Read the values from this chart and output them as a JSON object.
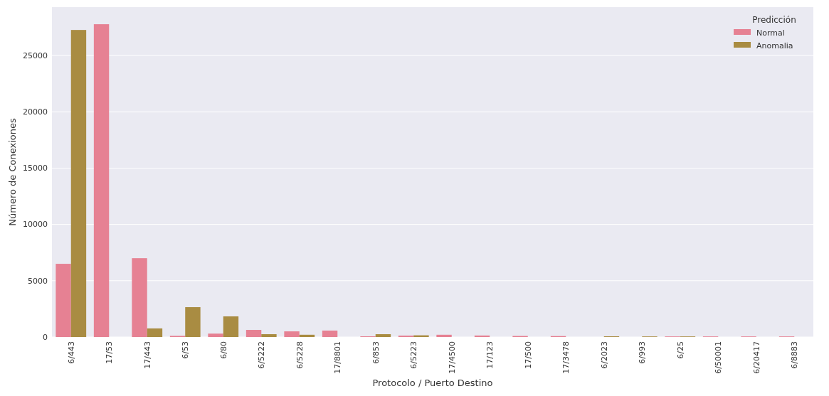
{
  "chart_data": {
    "type": "bar",
    "xlabel": "Protocolo / Puerto Destino",
    "ylabel": "Número de Conexiones",
    "legend_title": "Predicción",
    "categories": [
      "6/443",
      "17/53",
      "17/443",
      "6/53",
      "6/80",
      "6/5222",
      "6/5228",
      "17/8801",
      "6/853",
      "6/5223",
      "17/4500",
      "17/123",
      "17/500",
      "17/3478",
      "6/2023",
      "6/993",
      "6/25",
      "6/50001",
      "6/20417",
      "6/8883"
    ],
    "series": [
      {
        "name": "Normal",
        "color": "#e68193",
        "values": [
          6500,
          27780,
          7000,
          100,
          300,
          630,
          500,
          570,
          60,
          120,
          200,
          130,
          90,
          80,
          0,
          0,
          50,
          50,
          50,
          50
        ]
      },
      {
        "name": "Anomalia",
        "color": "#a98c42",
        "values": [
          27270,
          0,
          760,
          2650,
          1830,
          250,
          200,
          0,
          250,
          150,
          0,
          0,
          0,
          0,
          60,
          50,
          50,
          0,
          0,
          0
        ]
      }
    ],
    "ylim": [
      0,
      29300
    ],
    "yticks": [
      0,
      5000,
      10000,
      15000,
      20000,
      25000
    ],
    "grid": "y",
    "legend": "top right"
  }
}
